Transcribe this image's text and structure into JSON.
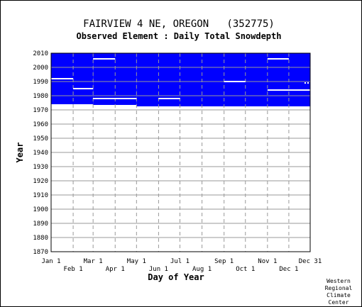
{
  "colors": {
    "fill": "#0000ff",
    "line": "#ffffff",
    "grid": "#999999",
    "axis": "#000000",
    "background": "#ffffff"
  },
  "chart_data": {
    "type": "area",
    "title": "FAIRVIEW 4 NE, OREGON   (352775)",
    "subtitle": "Observed Element : Daily Total Snowdepth",
    "xlabel": "Day of Year",
    "ylabel": "Year",
    "xlim": [
      1,
      365
    ],
    "ylim": [
      1870,
      2010
    ],
    "grid": true,
    "y_ticks": [
      2010,
      2000,
      1990,
      1980,
      1970,
      1960,
      1950,
      1940,
      1930,
      1920,
      1910,
      1900,
      1890,
      1880,
      1870
    ],
    "x_ticks_row1": [
      {
        "label": "Jan 1",
        "day": 1
      },
      {
        "label": "Mar 1",
        "day": 60
      },
      {
        "label": "May 1",
        "day": 121
      },
      {
        "label": "Jul 1",
        "day": 182
      },
      {
        "label": "Sep 1",
        "day": 244
      },
      {
        "label": "Nov 1",
        "day": 305
      },
      {
        "label": "Dec 31",
        "day": 365
      }
    ],
    "x_ticks_row2": [
      {
        "label": "Feb 1",
        "day": 32
      },
      {
        "label": "Apr 1",
        "day": 91
      },
      {
        "label": "Jun 1",
        "day": 152
      },
      {
        "label": "Aug 1",
        "day": 213
      },
      {
        "label": "Oct 1",
        "day": 274
      },
      {
        "label": "Dec 1",
        "day": 335
      }
    ],
    "record_regions": [
      {
        "day_start": 1,
        "day_end": 60,
        "year_start": 1974,
        "year_end": 2010
      },
      {
        "day_start": 60,
        "day_end": 121,
        "year_start": 1973.5,
        "year_end": 2010
      },
      {
        "day_start": 121,
        "day_end": 365,
        "year_start": 1972.5,
        "year_end": 2010
      }
    ],
    "gaps": [
      {
        "day_start": 1,
        "day_end": 32,
        "year": 1992
      },
      {
        "day_start": 32,
        "day_end": 60,
        "year": 1985
      },
      {
        "day_start": 60,
        "day_end": 91,
        "year": 2006
      },
      {
        "day_start": 60,
        "day_end": 121,
        "year": 1978
      },
      {
        "day_start": 152,
        "day_end": 182,
        "year": 1978
      },
      {
        "day_start": 244,
        "day_end": 274,
        "year": 1990
      },
      {
        "day_start": 305,
        "day_end": 335,
        "year": 2006
      },
      {
        "day_start": 305,
        "day_end": 365,
        "year": 1984
      },
      {
        "day_start": 357,
        "day_end": 359,
        "year": 1989
      },
      {
        "day_start": 361,
        "day_end": 363,
        "year": 1989
      }
    ],
    "credit": [
      "Western",
      "Regional",
      "Climate",
      "Center"
    ]
  }
}
